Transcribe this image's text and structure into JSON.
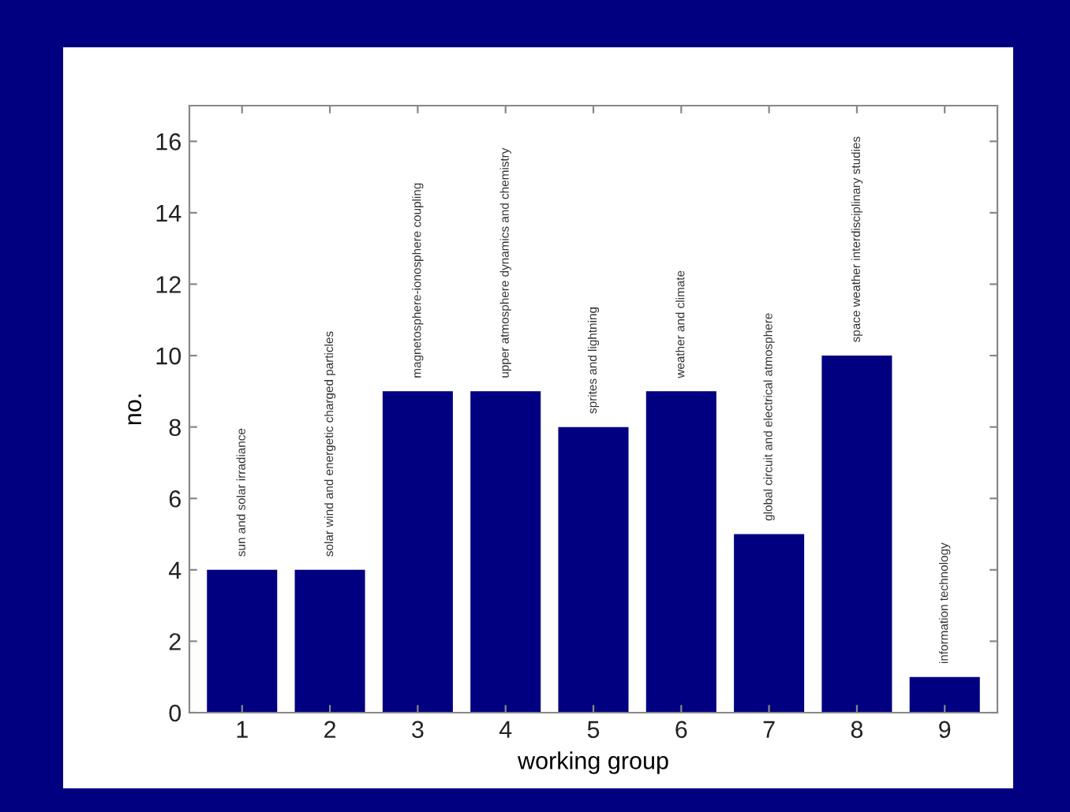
{
  "chart_data": {
    "type": "bar",
    "xlabel": "working group",
    "ylabel": "no.",
    "categories": [
      "1",
      "2",
      "3",
      "4",
      "5",
      "6",
      "7",
      "8",
      "9"
    ],
    "values": [
      4,
      4,
      9,
      9,
      8,
      9,
      5,
      10,
      1
    ],
    "color": "#000080",
    "ylim": [
      0,
      17
    ],
    "yticks": [
      0,
      2,
      4,
      6,
      8,
      10,
      12,
      14,
      16
    ],
    "grid": false,
    "annotations": [
      {
        "text": "sun and solar irradiance",
        "x": "1",
        "y": 4
      },
      {
        "text": "solar wind and energetic charged particles",
        "x": "2",
        "y": 4
      },
      {
        "text": "magnetosphere-ionosphere coupling",
        "x": "3",
        "y": 9
      },
      {
        "text": "upper atmosphere dynamics and chemistry",
        "x": "4",
        "y": 9
      },
      {
        "text": "sprites and lightning",
        "x": "5",
        "y": 8
      },
      {
        "text": "weather and climate",
        "x": "6",
        "y": 9
      },
      {
        "text": "global circuit and electrical atmosphere",
        "x": "7",
        "y": 5
      },
      {
        "text": "space weather interdisciplinary studies",
        "x": "8",
        "y": 10
      },
      {
        "text": "information technology",
        "x": "9",
        "y": 1
      }
    ]
  }
}
